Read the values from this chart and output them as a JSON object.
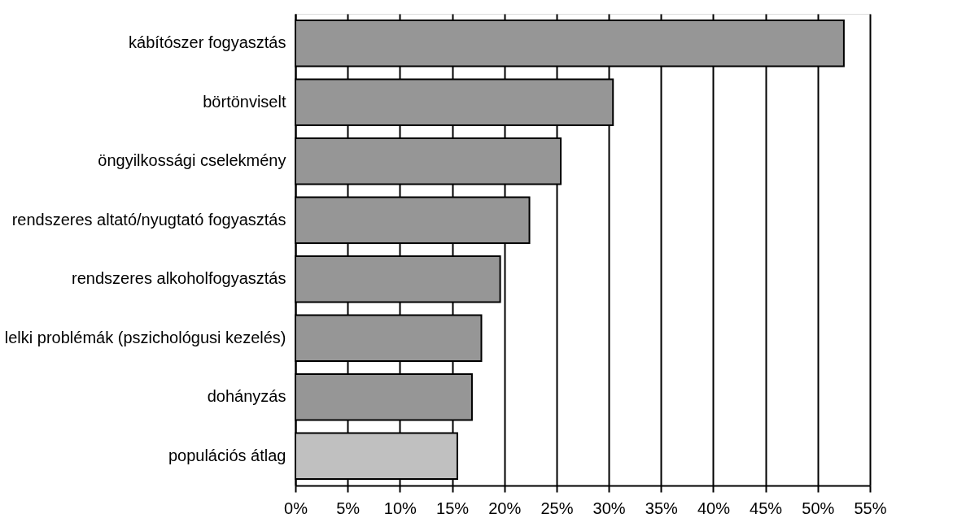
{
  "chart_data": {
    "type": "bar",
    "orientation": "horizontal",
    "categories": [
      "kábítószer fogyasztás",
      "börtönviselt",
      "öngyilkossági cselekmény",
      "rendszeres altató/nyugtató fogyasztás",
      "rendszeres alkoholfogyasztás",
      "lelki problémák (pszichológusi kezelés)",
      "dohányzás",
      "populációs átlag"
    ],
    "values": [
      52.5,
      30.4,
      25.4,
      22.4,
      19.6,
      17.8,
      16.9,
      15.5
    ],
    "colors": [
      "#969696",
      "#969696",
      "#969696",
      "#969696",
      "#969696",
      "#969696",
      "#969696",
      "#c0c0c0"
    ],
    "xlim": [
      0,
      55
    ],
    "xticks": [
      {
        "value": 0,
        "label": "0%"
      },
      {
        "value": 5,
        "label": "5%"
      },
      {
        "value": 10,
        "label": "10%"
      },
      {
        "value": 15,
        "label": "15%"
      },
      {
        "value": 20,
        "label": "20%"
      },
      {
        "value": 25,
        "label": "25%"
      },
      {
        "value": 30,
        "label": "30%"
      },
      {
        "value": 35,
        "label": "35%"
      },
      {
        "value": 40,
        "label": "40%"
      },
      {
        "value": 45,
        "label": "45%"
      },
      {
        "value": 50,
        "label": "50%"
      },
      {
        "value": 55,
        "label": "55%"
      }
    ],
    "grid": "x"
  }
}
